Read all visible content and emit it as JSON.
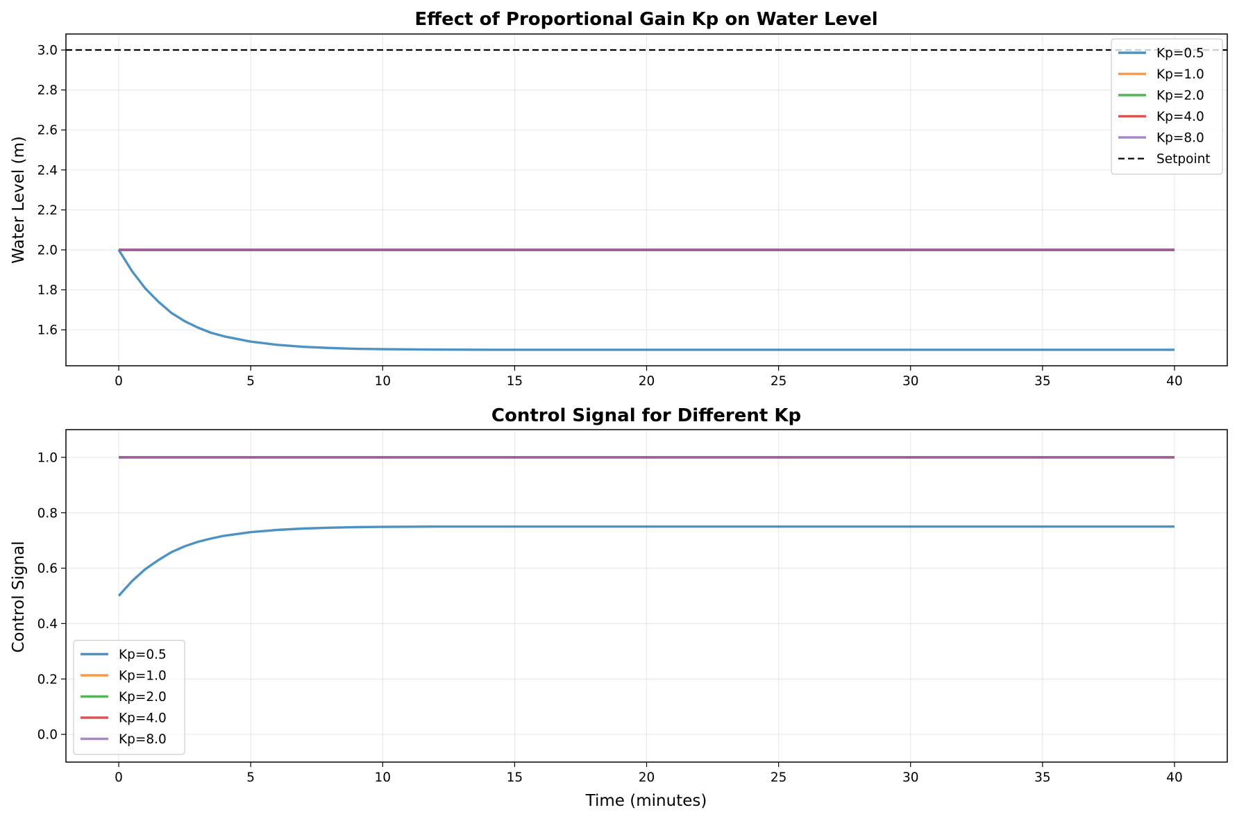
{
  "chart_data": [
    {
      "type": "line",
      "title": "Effect of Proportional Gain Kp on Water Level",
      "xlabel": "",
      "ylabel": "Water Level (m)",
      "xlim": [
        -2,
        42
      ],
      "ylim": [
        1.42,
        3.08
      ],
      "xticks": [
        0,
        5,
        10,
        15,
        20,
        25,
        30,
        35,
        40
      ],
      "yticks": [
        1.6,
        1.8,
        2.0,
        2.2,
        2.4,
        2.6,
        2.8,
        3.0
      ],
      "ytick_labels": [
        "1.6",
        "1.8",
        "2.0",
        "2.2",
        "2.4",
        "2.6",
        "2.8",
        "3.0"
      ],
      "grid": true,
      "legend_position": "upper right",
      "series": [
        {
          "name": "Kp=0.5",
          "color": "#1f77b4",
          "x": [
            0,
            0.5,
            1,
            1.5,
            2,
            2.5,
            3,
            3.5,
            4,
            5,
            6,
            7,
            8,
            9,
            10,
            12,
            14,
            16,
            20,
            25,
            30,
            35,
            40
          ],
          "y": [
            2.0,
            1.894,
            1.808,
            1.741,
            1.684,
            1.643,
            1.611,
            1.585,
            1.567,
            1.541,
            1.525,
            1.515,
            1.509,
            1.505,
            1.503,
            1.501,
            1.5,
            1.5,
            1.5,
            1.5,
            1.5,
            1.5,
            1.5
          ]
        },
        {
          "name": "Kp=1.0",
          "color": "#ff7f0e",
          "x": [
            0,
            40
          ],
          "y": [
            2.0,
            2.0
          ]
        },
        {
          "name": "Kp=2.0",
          "color": "#2ca02c",
          "x": [
            0,
            40
          ],
          "y": [
            2.0,
            2.0
          ]
        },
        {
          "name": "Kp=4.0",
          "color": "#d62728",
          "x": [
            0,
            40
          ],
          "y": [
            2.0,
            2.0
          ]
        },
        {
          "name": "Kp=8.0",
          "color": "#9467bd",
          "x": [
            0,
            40
          ],
          "y": [
            2.0,
            2.0
          ]
        }
      ],
      "reference_lines": [
        {
          "name": "Setpoint",
          "y": 3.0,
          "style": "dashed",
          "color": "#000000"
        }
      ]
    },
    {
      "type": "line",
      "title": "Control Signal for Different Kp",
      "xlabel": "Time (minutes)",
      "ylabel": "Control Signal",
      "xlim": [
        -2,
        42
      ],
      "ylim": [
        -0.1,
        1.1
      ],
      "xticks": [
        0,
        5,
        10,
        15,
        20,
        25,
        30,
        35,
        40
      ],
      "yticks": [
        0.0,
        0.2,
        0.4,
        0.6,
        0.8,
        1.0
      ],
      "ytick_labels": [
        "0.0",
        "0.2",
        "0.4",
        "0.6",
        "0.8",
        "1.0"
      ],
      "grid": true,
      "legend_position": "lower left",
      "series": [
        {
          "name": "Kp=0.5",
          "color": "#1f77b4",
          "x": [
            0,
            0.5,
            1,
            1.5,
            2,
            2.5,
            3,
            3.5,
            4,
            5,
            6,
            7,
            8,
            9,
            10,
            12,
            14,
            16,
            20,
            25,
            30,
            35,
            40
          ],
          "y": [
            0.5,
            0.553,
            0.596,
            0.629,
            0.658,
            0.679,
            0.695,
            0.707,
            0.717,
            0.73,
            0.738,
            0.743,
            0.746,
            0.748,
            0.749,
            0.75,
            0.75,
            0.75,
            0.75,
            0.75,
            0.75,
            0.75,
            0.75
          ]
        },
        {
          "name": "Kp=1.0",
          "color": "#ff7f0e",
          "x": [
            0,
            40
          ],
          "y": [
            1.0,
            1.0
          ]
        },
        {
          "name": "Kp=2.0",
          "color": "#2ca02c",
          "x": [
            0,
            40
          ],
          "y": [
            1.0,
            1.0
          ]
        },
        {
          "name": "Kp=4.0",
          "color": "#d62728",
          "x": [
            0,
            40
          ],
          "y": [
            1.0,
            1.0
          ]
        },
        {
          "name": "Kp=8.0",
          "color": "#9467bd",
          "x": [
            0,
            40
          ],
          "y": [
            1.0,
            1.0
          ]
        }
      ]
    }
  ]
}
